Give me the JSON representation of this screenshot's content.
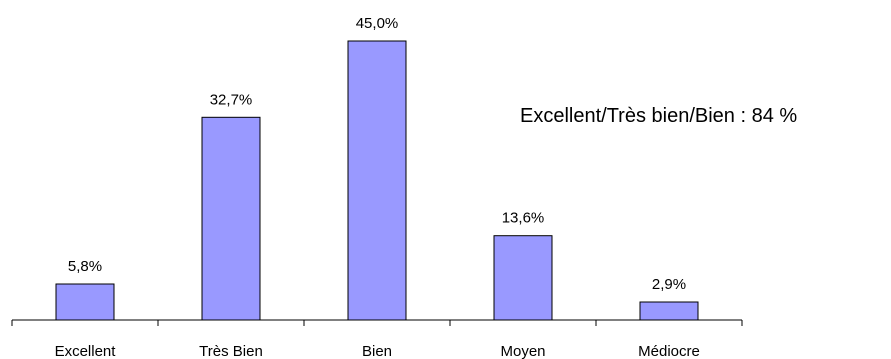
{
  "chart_data": {
    "type": "bar",
    "categories": [
      "Excellent",
      "Très Bien",
      "Bien",
      "Moyen",
      "Médiocre"
    ],
    "values": [
      5.8,
      32.7,
      45.0,
      13.6,
      2.9
    ],
    "data_labels": [
      "5,8%",
      "32,7%",
      "45,0%",
      "13,6%",
      "2,9%"
    ],
    "title": "",
    "xlabel": "",
    "ylabel": "",
    "ylim": [
      0,
      45
    ],
    "grid": false,
    "legend": "none",
    "annotation": "Excellent/Très bien/Bien : 84 %",
    "colors": {
      "bar_fill": "#9999ff",
      "bar_stroke": "#000000",
      "axis": "#000000"
    }
  }
}
